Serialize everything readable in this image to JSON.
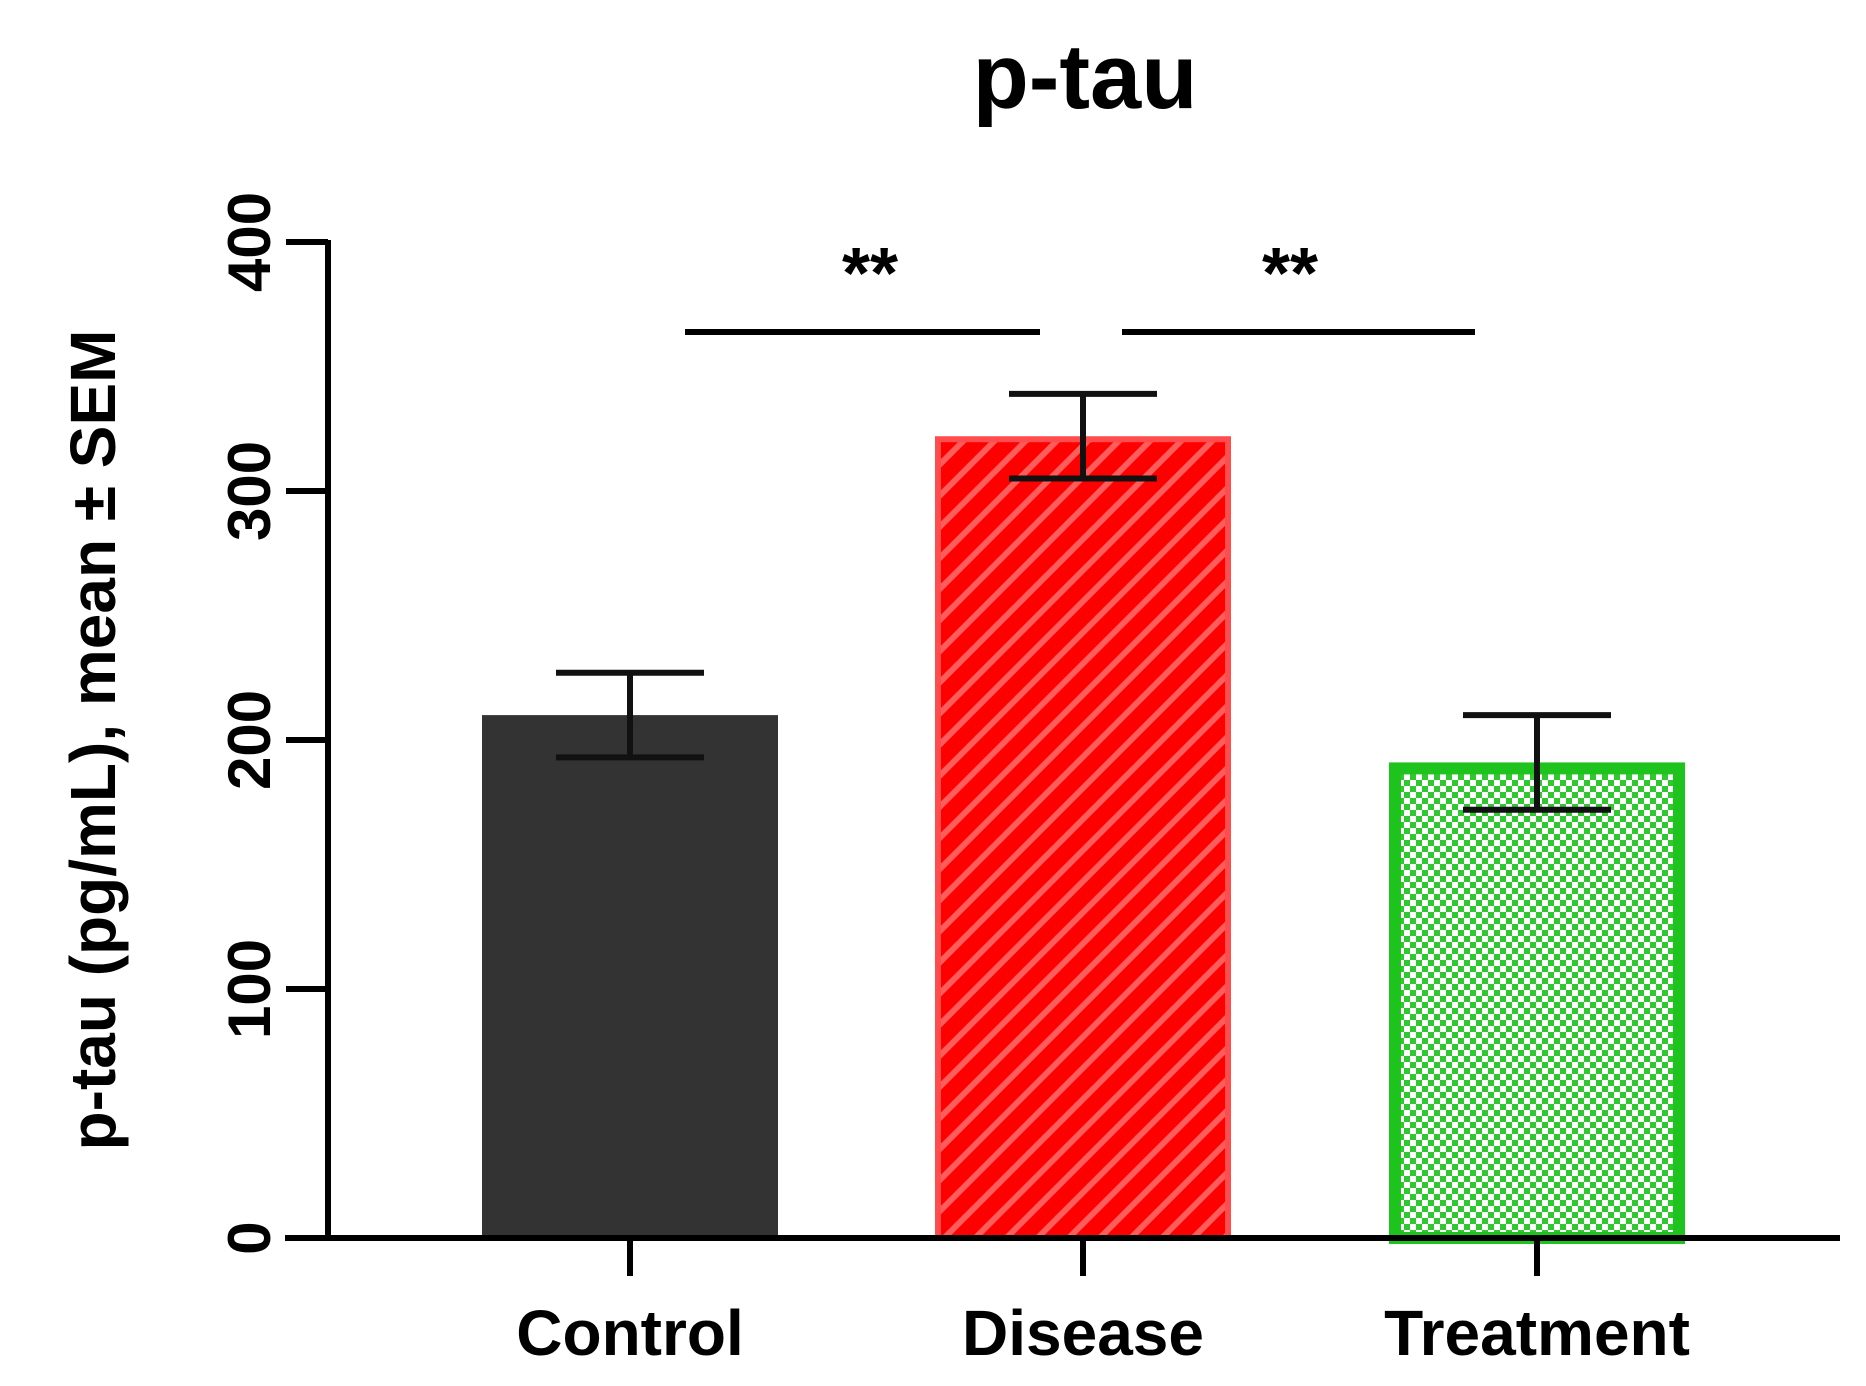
{
  "chart_data": {
    "type": "bar",
    "title": "p-tau",
    "xlabel": "",
    "ylabel": "p-tau (pg/mL), mean ± SEM",
    "ylim": [
      0,
      400
    ],
    "yticks": [
      0,
      100,
      200,
      300,
      400
    ],
    "categories": [
      "Control",
      "Disease",
      "Treatment"
    ],
    "values": [
      210,
      322,
      191
    ],
    "errors": [
      17,
      17,
      19
    ],
    "fills": [
      "solid",
      "diagonal-hatch",
      "checker"
    ],
    "colors": {
      "Control": {
        "fill": "#333333",
        "stroke": "#333333"
      },
      "Disease": {
        "fill": "#ff0000",
        "stroke": "#ff4d4d"
      },
      "Treatment": {
        "fill": "#ffffff",
        "stroke": "#1ec31e"
      }
    },
    "significance": [
      {
        "from": "Control",
        "to": "Disease",
        "label": "**"
      },
      {
        "from": "Disease",
        "to": "Treatment",
        "label": "**"
      }
    ]
  }
}
